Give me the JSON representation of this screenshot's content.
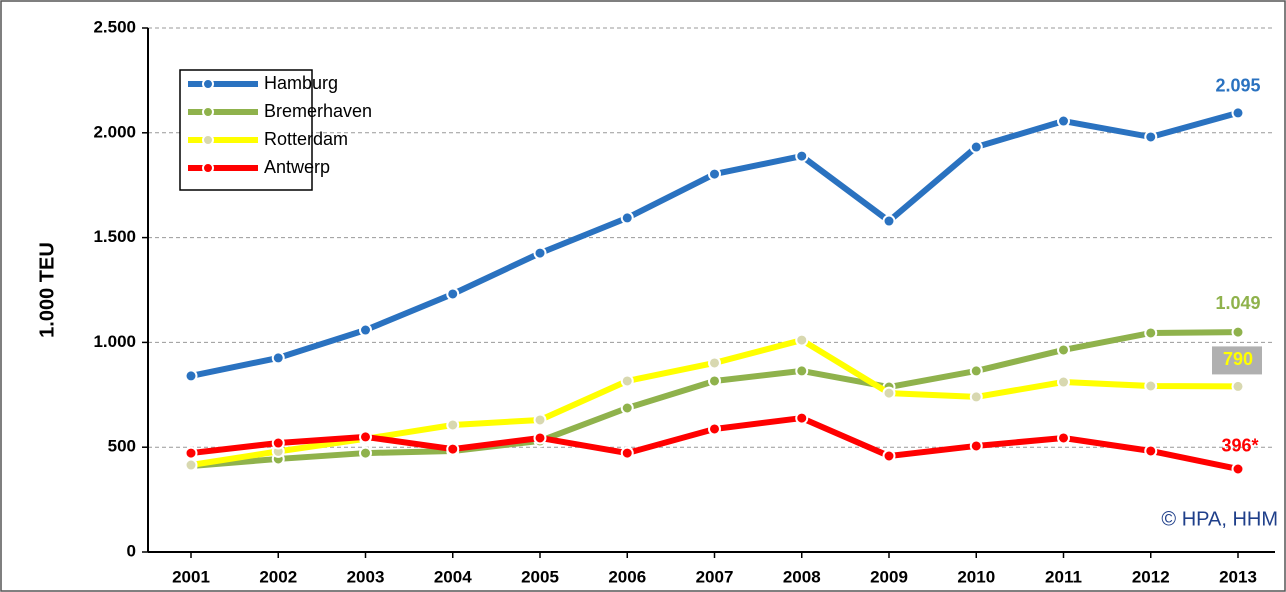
{
  "chart_data": {
    "type": "line",
    "y_label": "1.000 TEU",
    "annotation": "© HPA, HHM",
    "categories": [
      "2001",
      "2002",
      "2003",
      "2004",
      "2005",
      "2006",
      "2007",
      "2008",
      "2009",
      "2010",
      "2011",
      "2012",
      "2013"
    ],
    "series": [
      {
        "name": "Hamburg",
        "color": "#2a72c0",
        "values": [
          840,
          926,
          1059,
          1231,
          1426,
          1594,
          1803,
          1889,
          1579,
          1932,
          2056,
          1980,
          2095
        ],
        "value_labels": [
          null,
          null,
          null,
          null,
          null,
          null,
          null,
          null,
          null,
          null,
          null,
          null,
          "2.095"
        ]
      },
      {
        "name": "Bremerhaven",
        "color": "#8fb24c",
        "values": [
          410,
          444,
          472,
          482,
          530,
          687,
          816,
          864,
          787,
          864,
          964,
          1045,
          1049
        ],
        "value_labels": [
          null,
          null,
          null,
          null,
          null,
          null,
          null,
          null,
          null,
          null,
          null,
          null,
          "1.049"
        ]
      },
      {
        "name": "Rotterdam",
        "color": "#ffff00",
        "values": [
          415,
          480,
          540,
          606,
          630,
          816,
          902,
          1011,
          758,
          740,
          811,
          792,
          790
        ],
        "value_labels": [
          null,
          null,
          null,
          null,
          null,
          null,
          null,
          null,
          null,
          null,
          null,
          null,
          "790"
        ]
      },
      {
        "name": "Antwerp",
        "color": "#ff0000",
        "values": [
          472,
          520,
          549,
          491,
          544,
          472,
          587,
          639,
          458,
          506,
          544,
          482,
          396
        ],
        "value_labels": [
          null,
          null,
          null,
          null,
          null,
          null,
          null,
          null,
          null,
          null,
          null,
          null,
          "396*"
        ]
      }
    ],
    "ylim": [
      0,
      2500
    ],
    "yticks": [
      0,
      500,
      {
        "value": 1000,
        "label": "1.000"
      },
      {
        "value": 1500,
        "label": "1.500"
      },
      {
        "value": 2000,
        "label": "2.000"
      },
      {
        "value": 2500,
        "label": "2.500"
      }
    ],
    "grid": true,
    "legend": "upper left"
  }
}
